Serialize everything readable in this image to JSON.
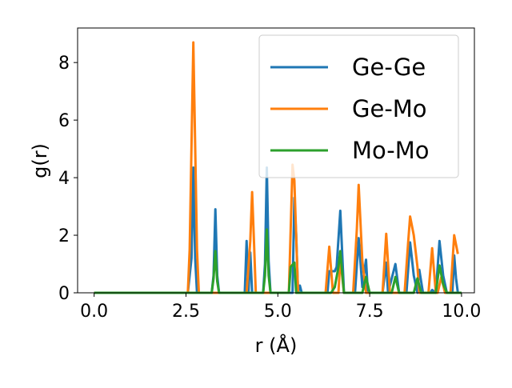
{
  "chart_data": {
    "type": "line",
    "title": "",
    "xlabel": "r (Å)",
    "ylabel": "g(r)",
    "xlim": [
      -0.45,
      10.35
    ],
    "ylim": [
      0,
      9.2
    ],
    "xticks": [
      0.0,
      2.5,
      5.0,
      7.5,
      10.0
    ],
    "xtick_labels": [
      "0.0",
      "2.5",
      "5.0",
      "7.5",
      "10.0"
    ],
    "yticks": [
      0,
      2,
      4,
      6,
      8
    ],
    "ytick_labels": [
      "0",
      "2",
      "4",
      "6",
      "8"
    ],
    "legend_position": "top-right",
    "grid": false,
    "series": [
      {
        "name": "Ge-Ge",
        "color": "#1f77b4",
        "points": [
          [
            0.0,
            0
          ],
          [
            2.5,
            0
          ],
          [
            2.55,
            0
          ],
          [
            2.65,
            1.2
          ],
          [
            2.7,
            4.35
          ],
          [
            2.75,
            1.2
          ],
          [
            2.8,
            0
          ],
          [
            3.2,
            0
          ],
          [
            3.25,
            0.6
          ],
          [
            3.3,
            2.9
          ],
          [
            3.35,
            0.6
          ],
          [
            3.4,
            0
          ],
          [
            4.1,
            0
          ],
          [
            4.15,
            1.8
          ],
          [
            4.2,
            0
          ],
          [
            4.25,
            1.4
          ],
          [
            4.3,
            0
          ],
          [
            4.6,
            0
          ],
          [
            4.65,
            1.0
          ],
          [
            4.7,
            4.35
          ],
          [
            4.75,
            1.1
          ],
          [
            4.8,
            0
          ],
          [
            5.4,
            0
          ],
          [
            5.45,
            3.3
          ],
          [
            5.5,
            2.0
          ],
          [
            5.55,
            0
          ],
          [
            5.6,
            0.25
          ],
          [
            5.65,
            0
          ],
          [
            6.35,
            0
          ],
          [
            6.4,
            0.75
          ],
          [
            6.5,
            0.75
          ],
          [
            6.55,
            0.75
          ],
          [
            6.6,
            0.9
          ],
          [
            6.7,
            2.85
          ],
          [
            6.8,
            0
          ],
          [
            7.1,
            0
          ],
          [
            7.2,
            1.9
          ],
          [
            7.3,
            0.2
          ],
          [
            7.4,
            1.15
          ],
          [
            7.45,
            0
          ],
          [
            7.85,
            0
          ],
          [
            7.95,
            1.05
          ],
          [
            8.0,
            0
          ],
          [
            8.2,
            1.0
          ],
          [
            8.3,
            0
          ],
          [
            8.5,
            0
          ],
          [
            8.6,
            1.75
          ],
          [
            8.7,
            0.6
          ],
          [
            8.8,
            0
          ],
          [
            8.85,
            0.8
          ],
          [
            8.95,
            0
          ],
          [
            9.15,
            0
          ],
          [
            9.2,
            0.1
          ],
          [
            9.3,
            0
          ],
          [
            9.4,
            1.8
          ],
          [
            9.5,
            0.6
          ],
          [
            9.6,
            0
          ],
          [
            9.75,
            0
          ],
          [
            9.8,
            1.3
          ],
          [
            9.85,
            0.5
          ],
          [
            9.9,
            0
          ]
        ]
      },
      {
        "name": "Ge-Mo",
        "color": "#ff7f0e",
        "points": [
          [
            0.0,
            0
          ],
          [
            2.55,
            0
          ],
          [
            2.6,
            1.5
          ],
          [
            2.7,
            8.7
          ],
          [
            2.8,
            1.5
          ],
          [
            2.85,
            0
          ],
          [
            4.15,
            0
          ],
          [
            4.25,
            1.8
          ],
          [
            4.3,
            3.5
          ],
          [
            4.35,
            1.8
          ],
          [
            4.4,
            0
          ],
          [
            5.3,
            0
          ],
          [
            5.4,
            4.45
          ],
          [
            5.45,
            3.9
          ],
          [
            5.55,
            0
          ],
          [
            6.3,
            0
          ],
          [
            6.4,
            1.6
          ],
          [
            6.5,
            0
          ],
          [
            6.65,
            0
          ],
          [
            6.7,
            1.2
          ],
          [
            6.8,
            0
          ],
          [
            7.05,
            0
          ],
          [
            7.15,
            2.2
          ],
          [
            7.2,
            3.75
          ],
          [
            7.3,
            1.1
          ],
          [
            7.4,
            0
          ],
          [
            7.85,
            0
          ],
          [
            7.95,
            2.05
          ],
          [
            8.05,
            0
          ],
          [
            8.45,
            0
          ],
          [
            8.55,
            1.8
          ],
          [
            8.6,
            2.65
          ],
          [
            8.7,
            2.0
          ],
          [
            8.8,
            0.9
          ],
          [
            8.85,
            0
          ],
          [
            9.1,
            0
          ],
          [
            9.2,
            1.55
          ],
          [
            9.3,
            0
          ],
          [
            9.35,
            0
          ],
          [
            9.45,
            0.55
          ],
          [
            9.55,
            0
          ],
          [
            9.7,
            0
          ],
          [
            9.8,
            2.0
          ],
          [
            9.9,
            1.35
          ]
        ]
      },
      {
        "name": "Mo-Mo",
        "color": "#2ca02c",
        "points": [
          [
            0.0,
            0
          ],
          [
            3.2,
            0
          ],
          [
            3.25,
            0.5
          ],
          [
            3.3,
            1.45
          ],
          [
            3.35,
            0.4
          ],
          [
            3.4,
            0
          ],
          [
            4.6,
            0
          ],
          [
            4.65,
            0.6
          ],
          [
            4.7,
            2.2
          ],
          [
            4.75,
            0.6
          ],
          [
            4.8,
            0
          ],
          [
            5.3,
            0
          ],
          [
            5.35,
            0.9
          ],
          [
            5.45,
            1.05
          ],
          [
            5.5,
            0
          ],
          [
            6.45,
            0
          ],
          [
            6.55,
            0.2
          ],
          [
            6.65,
            0.9
          ],
          [
            6.7,
            1.45
          ],
          [
            6.8,
            0
          ],
          [
            7.3,
            0
          ],
          [
            7.4,
            0.55
          ],
          [
            7.5,
            0
          ],
          [
            8.1,
            0
          ],
          [
            8.2,
            0.55
          ],
          [
            8.3,
            0
          ],
          [
            8.7,
            0
          ],
          [
            8.8,
            0.5
          ],
          [
            8.9,
            0
          ],
          [
            9.3,
            0
          ],
          [
            9.4,
            0.95
          ],
          [
            9.5,
            0.3
          ],
          [
            9.6,
            0
          ],
          [
            10.0,
            0
          ]
        ]
      }
    ]
  }
}
